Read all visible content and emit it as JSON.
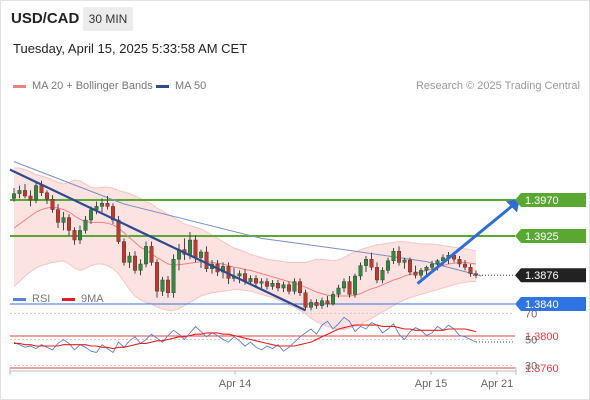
{
  "header": {
    "symbol": "USD/CAD",
    "timeframe": "30 MIN",
    "timestamp": "Tuesday, April 15, 2025 5:33:58 AM CET",
    "copyright": "Research © 2025 Trading Central"
  },
  "legend": [
    {
      "label": "MA 20 + Bollinger Bands",
      "color": "#f08080"
    },
    {
      "label": "MA 50",
      "color": "#2c4a8c"
    }
  ],
  "rsi_legend": [
    {
      "label": "RSI",
      "color": "#5b7fd6"
    },
    {
      "label": "9MA",
      "color": "#e02020"
    }
  ],
  "chart_data": [
    {
      "type": "candlestick",
      "levels": [
        {
          "value": 1.397,
          "label": "1.3970",
          "kind": "resistance",
          "color": "#5aa832"
        },
        {
          "value": 1.3925,
          "label": "1.3925",
          "kind": "resistance",
          "color": "#5aa832"
        },
        {
          "value": 1.3876,
          "label": "1.3876",
          "kind": "current",
          "color": "#222222"
        },
        {
          "value": 1.384,
          "label": "1.3840",
          "kind": "pivot",
          "color": "#2f74e0"
        },
        {
          "value": 1.38,
          "label": "1.3800",
          "kind": "support",
          "color": "#e04040"
        },
        {
          "value": 1.376,
          "label": "1.3760",
          "kind": "support",
          "color": "#e04040"
        }
      ],
      "x_ticks": [
        "Apr 14",
        "Apr 15",
        "Apr 21"
      ],
      "ylim": [
        1.372,
        1.4145
      ],
      "ohlc": [
        [
          1.3972,
          1.3985,
          1.3968,
          1.3978
        ],
        [
          1.3978,
          1.3988,
          1.3972,
          1.3982
        ],
        [
          1.3982,
          1.399,
          1.3972,
          1.3975
        ],
        [
          1.3975,
          1.3982,
          1.3962,
          1.397
        ],
        [
          1.397,
          1.3992,
          1.3966,
          1.3988
        ],
        [
          1.3988,
          1.3994,
          1.3975,
          1.3979
        ],
        [
          1.3979,
          1.3982,
          1.3965,
          1.3971
        ],
        [
          1.3971,
          1.3976,
          1.3954,
          1.3958
        ],
        [
          1.3958,
          1.3965,
          1.3935,
          1.3942
        ],
        [
          1.3942,
          1.3955,
          1.3932,
          1.3948
        ],
        [
          1.3948,
          1.3952,
          1.3925,
          1.3932
        ],
        [
          1.3932,
          1.3936,
          1.3914,
          1.392
        ],
        [
          1.392,
          1.3938,
          1.3915,
          1.3932
        ],
        [
          1.3932,
          1.395,
          1.3928,
          1.3945
        ],
        [
          1.3945,
          1.3962,
          1.394,
          1.3958
        ],
        [
          1.3958,
          1.3968,
          1.3952,
          1.3962
        ],
        [
          1.3962,
          1.3972,
          1.3955,
          1.3966
        ],
        [
          1.3966,
          1.3975,
          1.3958,
          1.3962
        ],
        [
          1.3962,
          1.3966,
          1.394,
          1.3945
        ],
        [
          1.3945,
          1.395,
          1.3915,
          1.3918
        ],
        [
          1.3918,
          1.3922,
          1.3888,
          1.3892
        ],
        [
          1.3892,
          1.3905,
          1.3885,
          1.39
        ],
        [
          1.39,
          1.3906,
          1.3878,
          1.3882
        ],
        [
          1.3882,
          1.3896,
          1.3876,
          1.389
        ],
        [
          1.389,
          1.3918,
          1.3886,
          1.3912
        ],
        [
          1.3912,
          1.3918,
          1.3888,
          1.3892
        ],
        [
          1.3892,
          1.3896,
          1.3848,
          1.3856
        ],
        [
          1.3856,
          1.3874,
          1.385,
          1.387
        ],
        [
          1.387,
          1.3875,
          1.3848,
          1.3854
        ],
        [
          1.3854,
          1.3902,
          1.3848,
          1.3896
        ],
        [
          1.3896,
          1.3915,
          1.3882,
          1.3908
        ],
        [
          1.3908,
          1.3922,
          1.3895,
          1.3902
        ],
        [
          1.3902,
          1.393,
          1.3896,
          1.392
        ],
        [
          1.392,
          1.3926,
          1.3892,
          1.3898
        ],
        [
          1.3898,
          1.3908,
          1.3885,
          1.3905
        ],
        [
          1.3905,
          1.3912,
          1.388,
          1.3884
        ],
        [
          1.3884,
          1.3895,
          1.3878,
          1.389
        ],
        [
          1.389,
          1.3895,
          1.3875,
          1.388
        ],
        [
          1.388,
          1.3892,
          1.3872,
          1.3887
        ],
        [
          1.3887,
          1.3892,
          1.3865,
          1.3872
        ],
        [
          1.3872,
          1.3885,
          1.3868,
          1.3875
        ],
        [
          1.3875,
          1.3882,
          1.3866,
          1.3878
        ],
        [
          1.3878,
          1.3884,
          1.3864,
          1.3868
        ],
        [
          1.3868,
          1.3876,
          1.3864,
          1.3872
        ],
        [
          1.3872,
          1.3876,
          1.3862,
          1.3866
        ],
        [
          1.3866,
          1.3872,
          1.386,
          1.3868
        ],
        [
          1.3868,
          1.3872,
          1.3858,
          1.3862
        ],
        [
          1.3862,
          1.387,
          1.3858,
          1.3866
        ],
        [
          1.3866,
          1.387,
          1.3856,
          1.386
        ],
        [
          1.386,
          1.3868,
          1.3855,
          1.3864
        ],
        [
          1.3864,
          1.3868,
          1.3852,
          1.3856
        ],
        [
          1.3856,
          1.3872,
          1.3852,
          1.3868
        ],
        [
          1.3868,
          1.3872,
          1.385,
          1.3854
        ],
        [
          1.3854,
          1.3858,
          1.3832,
          1.3836
        ],
        [
          1.3836,
          1.3846,
          1.3832,
          1.3842
        ],
        [
          1.3842,
          1.3846,
          1.3834,
          1.3838
        ],
        [
          1.3838,
          1.3848,
          1.3834,
          1.3844
        ],
        [
          1.3844,
          1.385,
          1.3836,
          1.384
        ],
        [
          1.384,
          1.3856,
          1.3838,
          1.3852
        ],
        [
          1.3852,
          1.3864,
          1.3848,
          1.386
        ],
        [
          1.386,
          1.3872,
          1.3855,
          1.3868
        ],
        [
          1.3868,
          1.3875,
          1.3848,
          1.3852
        ],
        [
          1.3852,
          1.3878,
          1.3848,
          1.3875
        ],
        [
          1.3875,
          1.3892,
          1.387,
          1.3888
        ],
        [
          1.3888,
          1.39,
          1.388,
          1.3896
        ],
        [
          1.3896,
          1.3904,
          1.3882,
          1.3886
        ],
        [
          1.3886,
          1.3892,
          1.3866,
          1.387
        ],
        [
          1.387,
          1.3886,
          1.3866,
          1.3882
        ],
        [
          1.3882,
          1.3898,
          1.3878,
          1.3894
        ],
        [
          1.3894,
          1.391,
          1.389,
          1.3906
        ],
        [
          1.3906,
          1.3912,
          1.3888,
          1.3892
        ],
        [
          1.3892,
          1.3898,
          1.3884,
          1.3895
        ],
        [
          1.3895,
          1.3898,
          1.3876,
          1.388
        ],
        [
          1.388,
          1.3888,
          1.3872,
          1.3876
        ],
        [
          1.3876,
          1.3885,
          1.3872,
          1.3882
        ],
        [
          1.3882,
          1.3888,
          1.3876,
          1.3886
        ],
        [
          1.3886,
          1.3894,
          1.388,
          1.389
        ],
        [
          1.389,
          1.3896,
          1.3882,
          1.3894
        ],
        [
          1.3894,
          1.3902,
          1.3888,
          1.3898
        ],
        [
          1.3898,
          1.3905,
          1.389,
          1.3901
        ],
        [
          1.3901,
          1.3905,
          1.3892,
          1.3896
        ],
        [
          1.3896,
          1.39,
          1.3886,
          1.389
        ],
        [
          1.389,
          1.3895,
          1.3882,
          1.3886
        ],
        [
          1.3886,
          1.389,
          1.3874,
          1.3878
        ],
        [
          1.3878,
          1.3882,
          1.3872,
          1.3876
        ]
      ],
      "ma20": [
        1.3935,
        1.394,
        1.3945,
        1.395,
        1.3955,
        1.3958,
        1.396,
        1.3961,
        1.396,
        1.3958,
        1.3955,
        1.395,
        1.3946,
        1.3943,
        1.3942,
        1.3942,
        1.3942,
        1.3941,
        1.3939,
        1.3935,
        1.3929,
        1.3923,
        1.3917,
        1.3911,
        1.3907,
        1.3903,
        1.3898,
        1.3894,
        1.389,
        1.3889,
        1.3889,
        1.389,
        1.3891,
        1.3892,
        1.3893,
        1.3893,
        1.3892,
        1.3891,
        1.389,
        1.3888,
        1.3886,
        1.3885,
        1.3883,
        1.3882,
        1.388,
        1.3878,
        1.3876,
        1.3874,
        1.3872,
        1.387,
        1.3868,
        1.3866,
        1.3864,
        1.3861,
        1.3858,
        1.3855,
        1.3853,
        1.3851,
        1.385,
        1.385,
        1.385,
        1.385,
        1.3851,
        1.3853,
        1.3856,
        1.3859,
        1.3861,
        1.3864,
        1.3867,
        1.387,
        1.3872,
        1.3875,
        1.3877,
        1.3878,
        1.388,
        1.3882,
        1.3884,
        1.3886,
        1.3888,
        1.389,
        1.3891,
        1.3892,
        1.3892,
        1.3891,
        1.389
      ],
      "bb_upper": [
        1.401,
        1.401,
        1.4008,
        1.4005,
        1.4002,
        1.4,
        1.3998,
        1.3995,
        1.3992,
        1.399,
        1.3992,
        1.3995,
        1.3994,
        1.399,
        1.3986,
        1.3985,
        1.3986,
        1.3986,
        1.3985,
        1.3982,
        1.398,
        1.3978,
        1.3975,
        1.3972,
        1.3968,
        1.3965,
        1.396,
        1.3956,
        1.3952,
        1.3948,
        1.3944,
        1.394,
        1.3938,
        1.3936,
        1.3934,
        1.393,
        1.3926,
        1.3922,
        1.3918,
        1.3914,
        1.391,
        1.3908,
        1.3905,
        1.3902,
        1.39,
        1.3898,
        1.3896,
        1.3895,
        1.3894,
        1.3893,
        1.3892,
        1.3892,
        1.3892,
        1.3892,
        1.3894,
        1.3896,
        1.3896,
        1.3895,
        1.3894,
        1.3895,
        1.3898,
        1.3902,
        1.3905,
        1.3908,
        1.391,
        1.3912,
        1.3914,
        1.3915,
        1.3916,
        1.3917,
        1.3918,
        1.3918,
        1.3917,
        1.3916,
        1.3915,
        1.3915,
        1.3915,
        1.3914,
        1.3913,
        1.3912,
        1.3911,
        1.391,
        1.3909,
        1.3908,
        1.3906
      ],
      "bb_lower": [
        1.3862,
        1.3868,
        1.3875,
        1.388,
        1.3885,
        1.3888,
        1.389,
        1.3892,
        1.3893,
        1.3894,
        1.389,
        1.3885,
        1.3882,
        1.3884,
        1.3888,
        1.389,
        1.389,
        1.3888,
        1.3884,
        1.3878,
        1.3868,
        1.3858,
        1.385,
        1.3845,
        1.3842,
        1.384,
        1.3836,
        1.3834,
        1.3832,
        1.3832,
        1.3834,
        1.3838,
        1.3842,
        1.3846,
        1.385,
        1.3852,
        1.3854,
        1.3855,
        1.3856,
        1.3857,
        1.3858,
        1.3858,
        1.3857,
        1.3856,
        1.3854,
        1.3852,
        1.385,
        1.3848,
        1.3845,
        1.3842,
        1.3839,
        1.3836,
        1.3832,
        1.3828,
        1.3822,
        1.3818,
        1.3815,
        1.3812,
        1.381,
        1.3808,
        1.3808,
        1.381,
        1.3812,
        1.3814,
        1.3818,
        1.3822,
        1.3826,
        1.383,
        1.3834,
        1.3838,
        1.3842,
        1.3845,
        1.3848,
        1.385,
        1.3852,
        1.3854,
        1.3856,
        1.3858,
        1.386,
        1.3862,
        1.3864,
        1.3866,
        1.3867,
        1.3868,
        1.3868
      ],
      "ma50": [
        [
          0,
          1.4018
        ],
        [
          20,
          1.3965
        ],
        [
          45,
          1.3922
        ],
        [
          60,
          1.3908
        ],
        [
          75,
          1.3893
        ],
        [
          85,
          1.3875
        ]
      ],
      "trendline": [
        [
          0,
          1.4008
        ],
        [
          53,
          1.3832
        ]
      ],
      "forecast_arrow": [
        [
          73,
          1.3868
        ],
        [
          84,
          1.3972
        ]
      ]
    },
    {
      "type": "line",
      "yticks": [
        70,
        50,
        30
      ],
      "ylim": [
        25,
        78
      ],
      "series": [
        {
          "name": "RSI",
          "color": "#5b7fd6",
          "values": [
            48,
            46,
            44,
            45,
            43,
            46,
            44,
            42,
            47,
            50,
            47,
            42,
            46,
            44,
            41,
            40,
            46,
            43,
            40,
            48,
            44,
            49,
            52,
            47,
            50,
            54,
            51,
            48,
            53,
            57,
            54,
            50,
            55,
            60,
            56,
            52,
            55,
            53,
            50,
            48,
            52,
            49,
            45,
            48,
            44,
            42,
            45,
            43,
            46,
            41,
            44,
            48,
            52,
            55,
            58,
            54,
            61,
            64,
            58,
            62,
            67,
            64,
            56,
            60,
            58,
            63,
            61,
            55,
            58,
            62,
            54,
            50,
            56,
            59,
            57,
            53,
            55,
            60,
            57,
            61,
            58,
            53,
            52,
            50,
            48
          ]
        },
        {
          "name": "9MA",
          "color": "#e02020",
          "values": [
            47,
            47,
            46,
            46,
            45,
            45,
            45,
            45,
            45,
            46,
            46,
            46,
            46,
            46,
            45,
            45,
            44,
            44,
            43,
            44,
            44,
            45,
            46,
            47,
            47,
            48,
            49,
            49,
            50,
            51,
            52,
            52,
            53,
            54,
            54,
            55,
            55,
            55,
            54,
            54,
            53,
            52,
            51,
            50,
            49,
            48,
            47,
            46,
            45,
            45,
            45,
            45,
            46,
            47,
            48,
            50,
            52,
            54,
            56,
            58,
            59,
            60,
            61,
            61,
            61,
            61,
            61,
            60,
            60,
            60,
            59,
            58,
            58,
            57,
            57,
            57,
            57,
            57,
            57,
            58,
            58,
            58,
            58,
            57,
            56
          ]
        }
      ]
    }
  ]
}
